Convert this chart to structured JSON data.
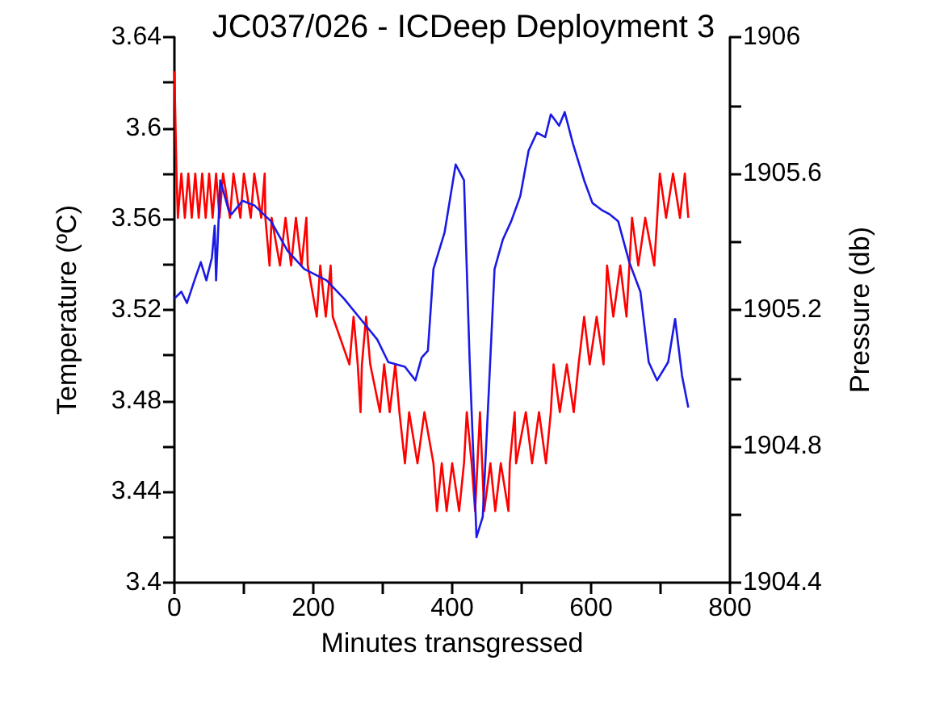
{
  "chart_data": {
    "type": "line",
    "title": "JC037/026 - ICDeep Deployment 3",
    "xlabel": "Minutes transgressed",
    "ylabel": "Temperature (ºC)",
    "y2label": "Pressure (db)",
    "xlim": [
      0,
      800
    ],
    "xticks": [
      0,
      {
        "value": 100,
        "label": null
      },
      200,
      {
        "value": 300,
        "label": null
      },
      400,
      {
        "value": 500,
        "label": null
      },
      600,
      {
        "value": 700,
        "label": null
      },
      800
    ],
    "ylim": [
      3.4,
      3.64
    ],
    "yticks": [
      3.4,
      {
        "value": 3.42,
        "label": null
      },
      3.44,
      {
        "value": 3.46,
        "label": null
      },
      3.48,
      {
        "value": 3.5,
        "label": null
      },
      3.52,
      {
        "value": 3.54,
        "label": null
      },
      3.56,
      {
        "value": 3.58,
        "label": null
      },
      3.6,
      {
        "value": 3.62,
        "label": null
      },
      3.64
    ],
    "y2lim": [
      1904.4,
      1906
    ],
    "y2ticks": [
      1904.4,
      {
        "value": 1904.6,
        "label": null
      },
      1904.8,
      {
        "value": 1905,
        "label": null
      },
      1905.2,
      {
        "value": 1905.4,
        "label": null
      },
      1905.6,
      {
        "value": 1905.8,
        "label": null
      },
      1906
    ],
    "marker": "none",
    "line_style": "solid",
    "series": [
      {
        "color": "#ff0000",
        "axis": "y2",
        "x": [
          0,
          3,
          5,
          10,
          15,
          20,
          25,
          30,
          35,
          40,
          45,
          50,
          55,
          60,
          65,
          70,
          80,
          85,
          95,
          100,
          110,
          115,
          125,
          130,
          131,
          137,
          140,
          152,
          160,
          168,
          175,
          183,
          190,
          192,
          205,
          210,
          218,
          225,
          228,
          252,
          258,
          264,
          268,
          270,
          276,
          282,
          296,
          302,
          310,
          318,
          324,
          332,
          338,
          350,
          360,
          373,
          378,
          385,
          392,
          400,
          410,
          417,
          421,
          428,
          433,
          440,
          446,
          455,
          462,
          470,
          481,
          483,
          490,
          492,
          506,
          515,
          525,
          535,
          542,
          546,
          555,
          565,
          575,
          582,
          590,
          598,
          608,
          618,
          623,
          632,
          642,
          651,
          659,
          668,
          678,
          691,
          699,
          708,
          718,
          728,
          735,
          740
        ],
        "values": [
          1905.9,
          1905.6,
          1905.47,
          1905.6,
          1905.47,
          1905.6,
          1905.47,
          1905.6,
          1905.47,
          1905.6,
          1905.47,
          1905.6,
          1905.47,
          1905.6,
          1905.47,
          1905.6,
          1905.47,
          1905.6,
          1905.47,
          1905.6,
          1905.47,
          1905.6,
          1905.47,
          1905.6,
          1905.47,
          1905.33,
          1905.47,
          1905.33,
          1905.47,
          1905.33,
          1905.47,
          1905.33,
          1905.47,
          1905.33,
          1905.18,
          1905.33,
          1905.18,
          1905.33,
          1905.18,
          1905.04,
          1905.18,
          1905.04,
          1904.9,
          1905.04,
          1905.18,
          1905.04,
          1904.9,
          1905.04,
          1904.9,
          1905.04,
          1904.9,
          1904.75,
          1904.9,
          1904.75,
          1904.9,
          1904.75,
          1904.61,
          1904.75,
          1904.61,
          1904.75,
          1904.61,
          1904.75,
          1904.9,
          1904.75,
          1904.61,
          1904.9,
          1904.61,
          1904.75,
          1904.61,
          1904.75,
          1904.61,
          1904.75,
          1904.9,
          1904.75,
          1904.9,
          1904.75,
          1904.9,
          1904.75,
          1904.9,
          1905.04,
          1904.9,
          1905.04,
          1904.9,
          1905.04,
          1905.18,
          1905.04,
          1905.18,
          1905.04,
          1905.33,
          1905.18,
          1905.33,
          1905.18,
          1905.47,
          1905.33,
          1905.47,
          1905.33,
          1905.6,
          1905.47,
          1905.6,
          1905.47,
          1905.6,
          1905.47
        ]
      },
      {
        "color": "#1a1ae6",
        "x": [
          0,
          10,
          18,
          30,
          38,
          46,
          54,
          58,
          60,
          66,
          78,
          82,
          98,
          115,
          139,
          163,
          187,
          219,
          244,
          268,
          292,
          308,
          332,
          347,
          356,
          365,
          373,
          389,
          405,
          417,
          425,
          435,
          444,
          453,
          461,
          473,
          485,
          498,
          510,
          522,
          534,
          542,
          554,
          562,
          574,
          590,
          602,
          615,
          627,
          639,
          655,
          671,
          683,
          695,
          711,
          721,
          731,
          740
        ],
        "values": [
          3.525,
          3.528,
          3.523,
          3.534,
          3.541,
          3.533,
          3.543,
          3.557,
          3.533,
          3.577,
          3.564,
          3.562,
          3.568,
          3.566,
          3.559,
          3.546,
          3.538,
          3.533,
          3.525,
          3.516,
          3.507,
          3.497,
          3.495,
          3.489,
          3.499,
          3.502,
          3.538,
          3.554,
          3.584,
          3.577,
          3.499,
          3.42,
          3.429,
          3.486,
          3.538,
          3.551,
          3.559,
          3.57,
          3.59,
          3.598,
          3.596,
          3.606,
          3.601,
          3.607,
          3.593,
          3.577,
          3.567,
          3.564,
          3.562,
          3.559,
          3.541,
          3.528,
          3.497,
          3.489,
          3.497,
          3.516,
          3.491,
          3.477
        ]
      }
    ]
  }
}
